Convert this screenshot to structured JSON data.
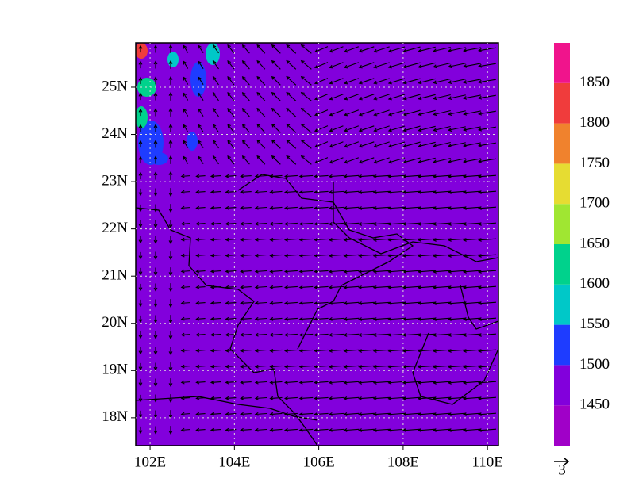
{
  "map": {
    "xlim": [
      101.66,
      110.26
    ],
    "ylim": [
      17.41,
      25.94
    ],
    "xticks": [
      {
        "value": 102,
        "label": "102E"
      },
      {
        "value": 104,
        "label": "104E"
      },
      {
        "value": 106,
        "label": "106E"
      },
      {
        "value": 108,
        "label": "108E"
      },
      {
        "value": 110,
        "label": "110E"
      }
    ],
    "yticks": [
      {
        "value": 18,
        "label": "18N"
      },
      {
        "value": 19,
        "label": "19N"
      },
      {
        "value": 20,
        "label": "20N"
      },
      {
        "value": 21,
        "label": "21N"
      },
      {
        "value": 22,
        "label": "22N"
      },
      {
        "value": 23,
        "label": "23N"
      },
      {
        "value": 24,
        "label": "24N"
      },
      {
        "value": 25,
        "label": "25N"
      }
    ],
    "grid": true,
    "colorbar": {
      "levels": [
        1450,
        1500,
        1550,
        1600,
        1650,
        1700,
        1750,
        1800,
        1850
      ],
      "colors": [
        "#a000c8",
        "#8200dc",
        "#1e3cff",
        "#00c8c8",
        "#00d28c",
        "#a0e632",
        "#e6dc32",
        "#f0822d",
        "#f03c3c",
        "#f0148c"
      ]
    },
    "reference_vector": "3"
  }
}
